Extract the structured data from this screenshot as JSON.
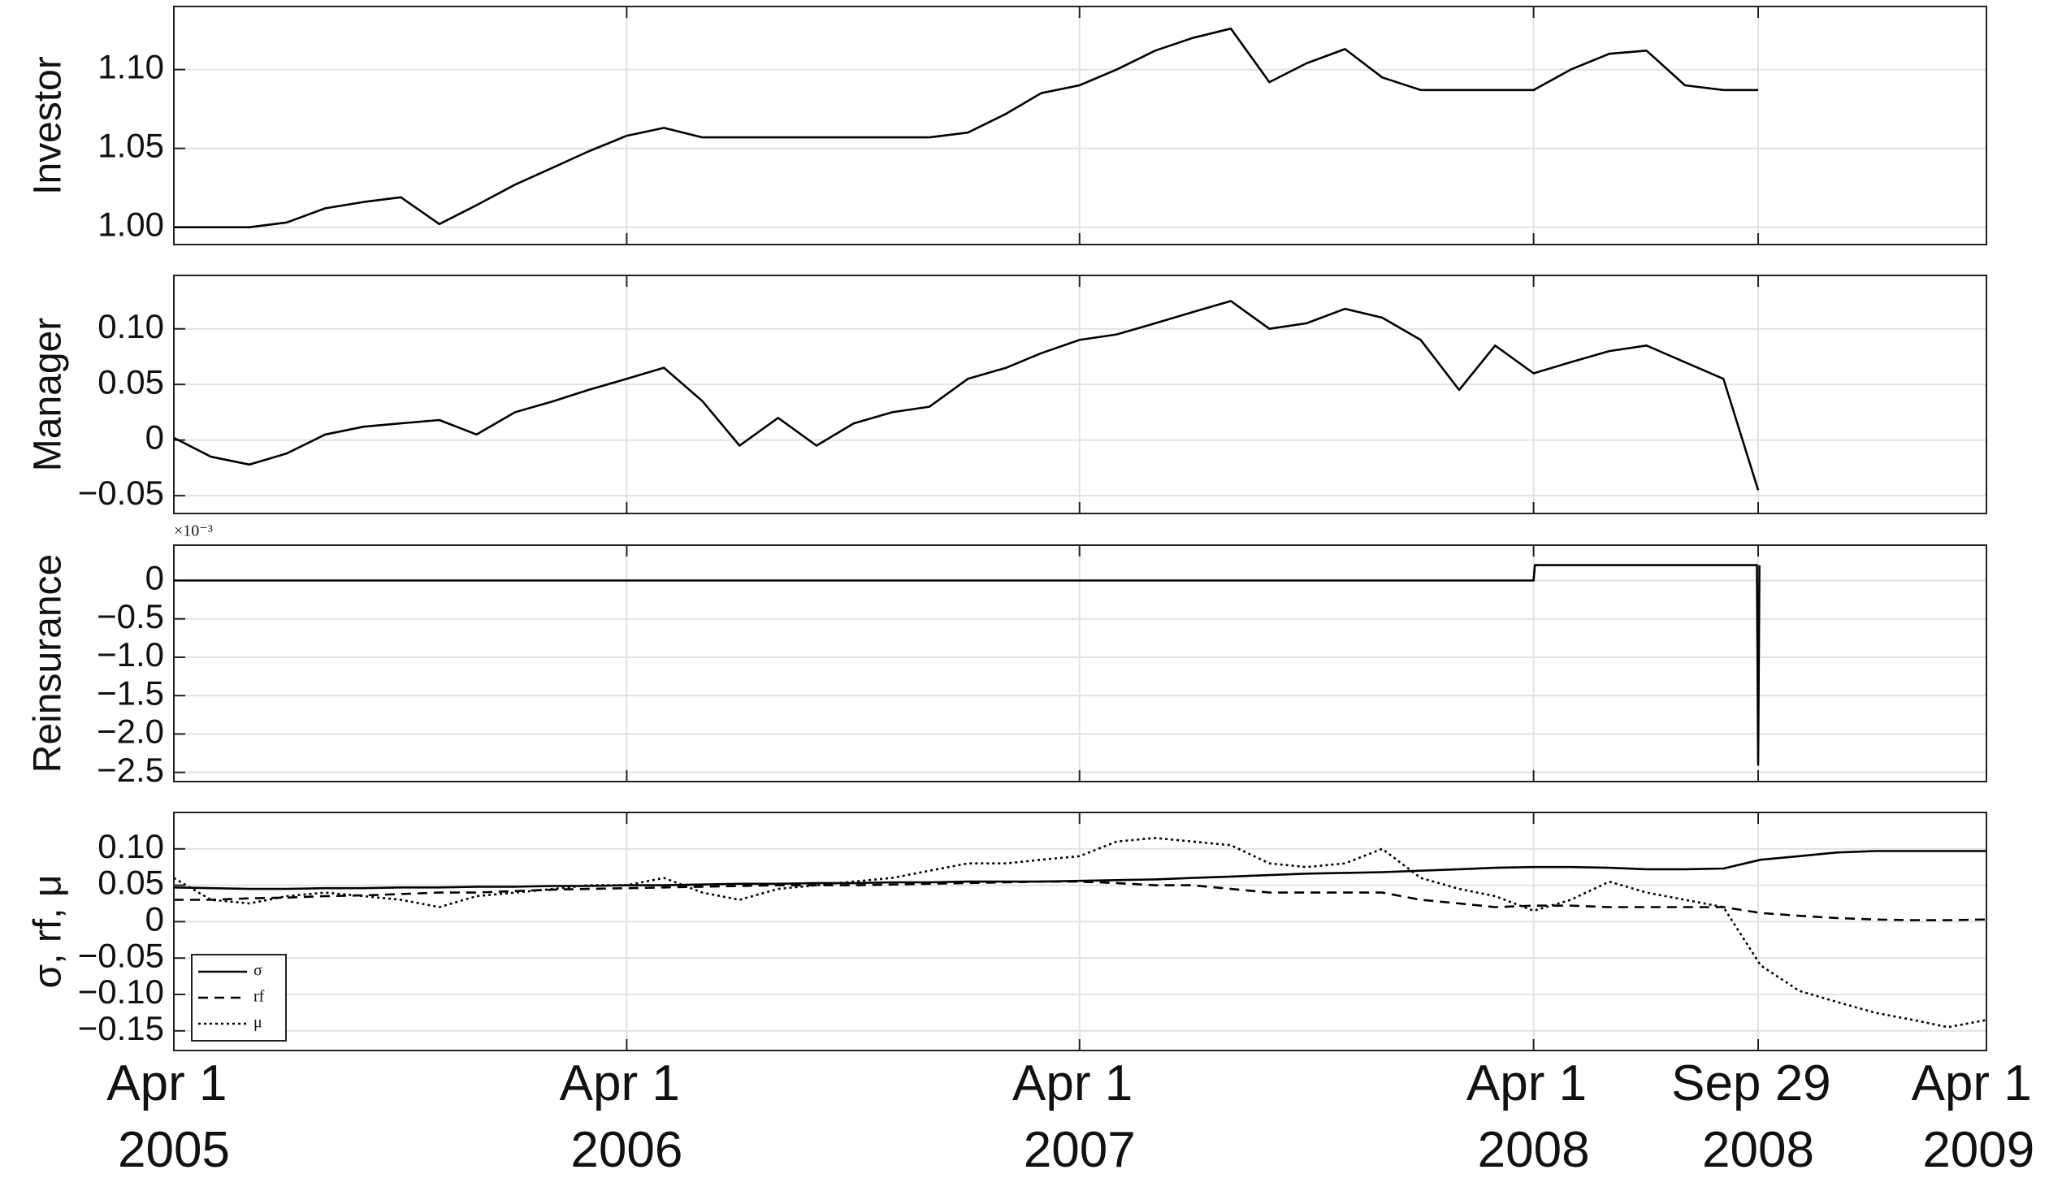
{
  "chart_data": [
    {
      "type": "line",
      "ylabel": "Investor",
      "color": "#000000",
      "grid": true,
      "ylim": [
        0.989,
        1.14
      ],
      "yticks": [
        {
          "value": 1.0,
          "label": "1.00"
        },
        {
          "value": 1.05,
          "label": "1.05"
        },
        {
          "value": 1.1,
          "label": "1.10"
        }
      ],
      "x": [
        "2005-04-01",
        "2005-05-01",
        "2005-06-01",
        "2005-07-01",
        "2005-08-01",
        "2005-09-01",
        "2005-10-01",
        "2005-11-01",
        "2005-12-01",
        "2006-01-01",
        "2006-02-01",
        "2006-03-01",
        "2006-04-01",
        "2006-05-01",
        "2006-06-01",
        "2006-07-01",
        "2006-08-01",
        "2006-09-01",
        "2006-10-01",
        "2006-11-01",
        "2006-12-01",
        "2007-01-01",
        "2007-02-01",
        "2007-03-01",
        "2007-04-01",
        "2007-05-01",
        "2007-06-01",
        "2007-07-01",
        "2007-08-01",
        "2007-09-01",
        "2007-10-01",
        "2007-11-01",
        "2007-12-01",
        "2008-01-01",
        "2008-02-01",
        "2008-03-01",
        "2008-04-01",
        "2008-05-01",
        "2008-06-01",
        "2008-07-01",
        "2008-08-01",
        "2008-09-01",
        "2008-09-29"
      ],
      "values": [
        1.0,
        1.0,
        1.0,
        1.003,
        1.012,
        1.016,
        1.019,
        1.002,
        1.014,
        1.027,
        1.038,
        1.048,
        1.058,
        1.063,
        1.057,
        1.057,
        1.057,
        1.057,
        1.057,
        1.057,
        1.057,
        1.06,
        1.072,
        1.085,
        1.09,
        1.1,
        1.112,
        1.12,
        1.126,
        1.092,
        1.104,
        1.113,
        1.095,
        1.087,
        1.087,
        1.087,
        1.087,
        1.1,
        1.11,
        1.112,
        1.09,
        1.087,
        1.087
      ]
    },
    {
      "type": "line",
      "ylabel": "Manager",
      "color": "#000000",
      "grid": true,
      "ylim": [
        -0.066,
        0.148
      ],
      "yticks": [
        {
          "value": -0.05,
          "label": "−0.05"
        },
        0,
        0.05,
        {
          "value": 0.1,
          "label": "0.10"
        }
      ],
      "x": [
        "2005-04-01",
        "2005-05-01",
        "2005-06-01",
        "2005-07-01",
        "2005-08-01",
        "2005-09-01",
        "2005-10-01",
        "2005-11-01",
        "2005-12-01",
        "2006-01-01",
        "2006-02-01",
        "2006-03-01",
        "2006-04-01",
        "2006-05-01",
        "2006-06-01",
        "2006-07-01",
        "2006-08-01",
        "2006-09-01",
        "2006-10-01",
        "2006-11-01",
        "2006-12-01",
        "2007-01-01",
        "2007-02-01",
        "2007-03-01",
        "2007-04-01",
        "2007-05-01",
        "2007-06-01",
        "2007-07-01",
        "2007-08-01",
        "2007-09-01",
        "2007-10-01",
        "2007-11-01",
        "2007-12-01",
        "2008-01-01",
        "2008-02-01",
        "2008-03-01",
        "2008-04-01",
        "2008-05-01",
        "2008-06-01",
        "2008-07-01",
        "2008-08-01",
        "2008-09-01",
        "2008-09-29"
      ],
      "values": [
        0.002,
        -0.015,
        -0.022,
        -0.012,
        0.005,
        0.012,
        0.015,
        0.018,
        0.005,
        0.025,
        0.035,
        0.045,
        0.055,
        0.065,
        0.035,
        -0.005,
        0.02,
        -0.005,
        0.015,
        0.025,
        0.03,
        0.055,
        0.065,
        0.078,
        0.09,
        0.095,
        0.105,
        0.115,
        0.125,
        0.1,
        0.105,
        0.118,
        0.11,
        0.09,
        0.045,
        0.085,
        0.06,
        0.07,
        0.08,
        0.085,
        0.07,
        0.055,
        -0.045
      ]
    },
    {
      "type": "line",
      "ylabel": "Reinsurance",
      "color": "#000000",
      "grid": true,
      "y_multiplier": "×10⁻³",
      "ylim": [
        -2.62,
        0.46
      ],
      "yticks": [
        {
          "value": -2.5,
          "label": "−2.5"
        },
        {
          "value": -2.0,
          "label": "−2.0"
        },
        {
          "value": -1.5,
          "label": "−1.5"
        },
        {
          "value": -1.0,
          "label": "−1.0"
        },
        {
          "value": -0.5,
          "label": "−0.5"
        },
        0
      ],
      "x": [
        "2005-04-01",
        "2008-04-01",
        "2008-04-02",
        "2008-09-28",
        "2008-09-29",
        "2008-09-30"
      ],
      "values": [
        0,
        0,
        0.2,
        0.2,
        -2.4,
        0.2
      ]
    },
    {
      "type": "line",
      "ylabel": "σ, rf, μ",
      "grid": true,
      "legend": "lower left",
      "ylim": [
        -0.177,
        0.15
      ],
      "yticks": [
        {
          "value": -0.15,
          "label": "−0.15"
        },
        {
          "value": -0.1,
          "label": "−0.10"
        },
        {
          "value": -0.05,
          "label": "−0.05"
        },
        0,
        0.05,
        {
          "value": 0.1,
          "label": "0.10"
        }
      ],
      "xlim": [
        "2005-04-01",
        "2009-04-01"
      ],
      "xticks": [
        {
          "value": "2005-04-01",
          "label": "Apr 1 2005"
        },
        {
          "value": "2006-04-01",
          "label": "Apr 1 2006"
        },
        {
          "value": "2007-04-01",
          "label": "Apr 1 2007"
        },
        {
          "value": "2008-04-01",
          "label": "Apr 1 2008"
        },
        {
          "value": "2008-09-29",
          "label": "Sep 29 2008"
        },
        {
          "value": "2009-04-01",
          "label": "Apr 1 2009"
        }
      ],
      "x": [
        "2005-04-01",
        "2005-05-01",
        "2005-06-01",
        "2005-07-01",
        "2005-08-01",
        "2005-09-01",
        "2005-10-01",
        "2005-11-01",
        "2005-12-01",
        "2006-01-01",
        "2006-02-01",
        "2006-03-01",
        "2006-04-01",
        "2006-05-01",
        "2006-06-01",
        "2006-07-01",
        "2006-08-01",
        "2006-09-01",
        "2006-10-01",
        "2006-11-01",
        "2006-12-01",
        "2007-01-01",
        "2007-02-01",
        "2007-03-01",
        "2007-04-01",
        "2007-05-01",
        "2007-06-01",
        "2007-07-01",
        "2007-08-01",
        "2007-09-01",
        "2007-10-01",
        "2007-11-01",
        "2007-12-01",
        "2008-01-01",
        "2008-02-01",
        "2008-03-01",
        "2008-04-01",
        "2008-05-01",
        "2008-06-01",
        "2008-07-01",
        "2008-08-01",
        "2008-09-01",
        "2008-10-01",
        "2008-11-01",
        "2008-12-01",
        "2009-01-01",
        "2009-02-01",
        "2009-03-01",
        "2009-04-01"
      ],
      "series": [
        {
          "name": "σ",
          "color": "#000000",
          "dash": "solid",
          "values": [
            0.047,
            0.046,
            0.045,
            0.045,
            0.046,
            0.046,
            0.047,
            0.047,
            0.048,
            0.048,
            0.049,
            0.049,
            0.05,
            0.05,
            0.051,
            0.052,
            0.052,
            0.053,
            0.053,
            0.054,
            0.054,
            0.055,
            0.055,
            0.055,
            0.056,
            0.057,
            0.058,
            0.06,
            0.062,
            0.064,
            0.066,
            0.067,
            0.068,
            0.07,
            0.072,
            0.074,
            0.075,
            0.075,
            0.074,
            0.072,
            0.072,
            0.073,
            0.085,
            0.09,
            0.095,
            0.097,
            0.097,
            0.097,
            0.097
          ]
        },
        {
          "name": "rf",
          "color": "#000000",
          "dash": "dashed",
          "values": [
            0.03,
            0.03,
            0.032,
            0.033,
            0.035,
            0.036,
            0.038,
            0.04,
            0.04,
            0.042,
            0.044,
            0.045,
            0.046,
            0.047,
            0.048,
            0.049,
            0.05,
            0.05,
            0.05,
            0.051,
            0.052,
            0.053,
            0.054,
            0.055,
            0.055,
            0.053,
            0.05,
            0.05,
            0.045,
            0.04,
            0.04,
            0.04,
            0.04,
            0.03,
            0.025,
            0.02,
            0.022,
            0.022,
            0.02,
            0.02,
            0.02,
            0.02,
            0.012,
            0.008,
            0.005,
            0.003,
            0.002,
            0.002,
            0.003
          ]
        },
        {
          "name": "μ",
          "color": "#000000",
          "dash": "dotted",
          "values": [
            0.06,
            0.03,
            0.025,
            0.035,
            0.04,
            0.035,
            0.03,
            0.02,
            0.035,
            0.04,
            0.045,
            0.05,
            0.05,
            0.06,
            0.04,
            0.03,
            0.045,
            0.05,
            0.055,
            0.06,
            0.07,
            0.08,
            0.08,
            0.085,
            0.09,
            0.11,
            0.115,
            0.11,
            0.105,
            0.08,
            0.075,
            0.08,
            0.1,
            0.06,
            0.045,
            0.035,
            0.015,
            0.03,
            0.055,
            0.04,
            0.03,
            0.02,
            -0.06,
            -0.095,
            -0.11,
            -0.125,
            -0.135,
            -0.145,
            -0.135
          ]
        }
      ]
    }
  ]
}
